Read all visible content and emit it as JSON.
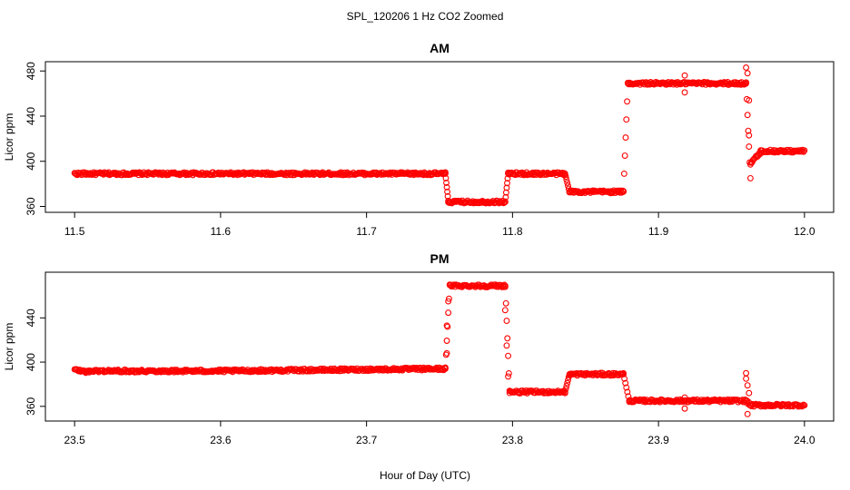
{
  "figure": {
    "title": "SPL_120206  1 Hz CO2 Zoomed",
    "xlabel": "Hour of Day (UTC)"
  },
  "colors": {
    "points": "#ff0000",
    "axes": "#000000"
  },
  "chart_data": [
    {
      "type": "scatter",
      "title": "AM",
      "ylabel": "Licor ppm",
      "xlim": [
        11.5,
        12.0
      ],
      "ylim": [
        358,
        485
      ],
      "x_ticks": [
        "11.5",
        "11.6",
        "11.7",
        "11.8",
        "11.9",
        "12.0"
      ],
      "y_ticks": [
        "360",
        "400",
        "440",
        "480"
      ],
      "segments": [
        {
          "x": [
            11.5,
            11.754
          ],
          "y": 389
        },
        {
          "x": [
            11.754,
            11.756
          ],
          "y": [
            389,
            365
          ]
        },
        {
          "x": [
            11.756,
            11.795
          ],
          "y": 364
        },
        {
          "x": [
            11.795,
            11.797
          ],
          "y": [
            364,
            389
          ]
        },
        {
          "x": [
            11.797,
            11.836
          ],
          "y": 389
        },
        {
          "x": [
            11.836,
            11.839
          ],
          "y": [
            389,
            373
          ]
        },
        {
          "x": [
            11.839,
            11.876
          ],
          "y": 373
        },
        {
          "x": [
            11.876,
            11.879
          ],
          "y": [
            373,
            469
          ]
        },
        {
          "x": [
            11.879,
            11.96
          ],
          "y": 469
        },
        {
          "x": [
            11.96,
            11.963
          ],
          "y": [
            469,
            385
          ]
        },
        {
          "x": [
            11.963,
            11.97
          ],
          "y": [
            398,
            408
          ]
        },
        {
          "x": [
            11.97,
            12.0
          ],
          "y": 409
        }
      ],
      "outliers": [
        {
          "x": 11.918,
          "y": 476
        },
        {
          "x": 11.918,
          "y": 461
        },
        {
          "x": 11.96,
          "y": 483
        },
        {
          "x": 11.961,
          "y": 478
        },
        {
          "x": 11.962,
          "y": 454
        },
        {
          "x": 11.962,
          "y": 423
        }
      ]
    },
    {
      "type": "scatter",
      "title": "PM",
      "ylabel": "Licor ppm",
      "xlim": [
        23.5,
        24.0
      ],
      "ylim": [
        350,
        478
      ],
      "x_ticks": [
        "23.5",
        "23.6",
        "23.7",
        "23.8",
        "23.9",
        "24.0"
      ],
      "y_ticks": [
        "360",
        "400",
        "440"
      ],
      "segments": [
        {
          "x": [
            23.5,
            23.51
          ],
          "y": [
            393,
            391
          ]
        },
        {
          "x": [
            23.51,
            23.6
          ],
          "y": 392
        },
        {
          "x": [
            23.6,
            23.754
          ],
          "y": [
            392,
            394
          ]
        },
        {
          "x": [
            23.754,
            23.757
          ],
          "y": [
            394,
            470
          ]
        },
        {
          "x": [
            23.757,
            23.795
          ],
          "y": 469
        },
        {
          "x": [
            23.795,
            23.798
          ],
          "y": [
            469,
            374
          ]
        },
        {
          "x": [
            23.798,
            23.836
          ],
          "y": 373
        },
        {
          "x": [
            23.836,
            23.839
          ],
          "y": [
            373,
            389
          ]
        },
        {
          "x": [
            23.839,
            23.876
          ],
          "y": 389
        },
        {
          "x": [
            23.876,
            23.88
          ],
          "y": [
            389,
            365
          ]
        },
        {
          "x": [
            23.88,
            23.96
          ],
          "y": 365
        },
        {
          "x": [
            23.96,
            23.963
          ],
          "y": [
            365,
            361
          ]
        },
        {
          "x": [
            23.963,
            24.0
          ],
          "y": 361
        }
      ],
      "outliers": [
        {
          "x": 23.755,
          "y": 408
        },
        {
          "x": 23.755,
          "y": 433
        },
        {
          "x": 23.756,
          "y": 455
        },
        {
          "x": 23.795,
          "y": 447
        },
        {
          "x": 23.796,
          "y": 415
        },
        {
          "x": 23.797,
          "y": 387
        },
        {
          "x": 23.918,
          "y": 368
        },
        {
          "x": 23.918,
          "y": 358
        },
        {
          "x": 23.96,
          "y": 390
        },
        {
          "x": 23.96,
          "y": 385
        },
        {
          "x": 23.961,
          "y": 379
        },
        {
          "x": 23.961,
          "y": 353
        },
        {
          "x": 23.962,
          "y": 372
        }
      ]
    }
  ]
}
